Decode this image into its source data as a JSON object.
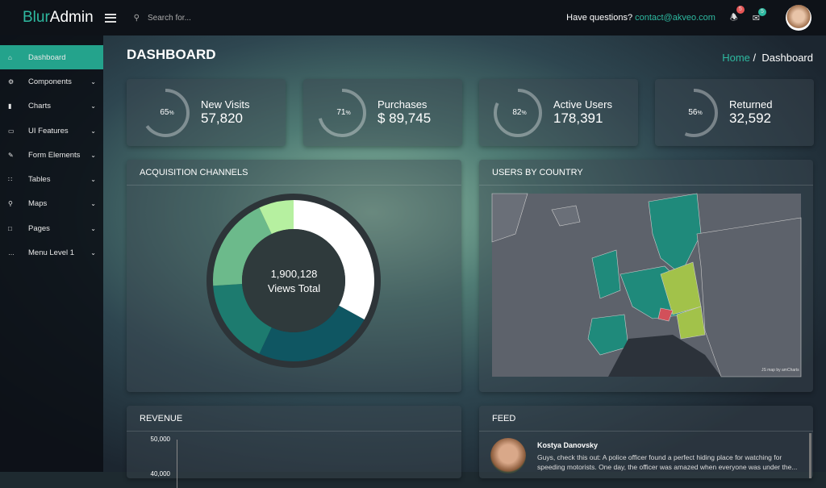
{
  "header": {
    "logo_part1": "Blur",
    "logo_part2": "Admin",
    "search_placeholder": "Search for...",
    "questions": "Have questions?",
    "email": "contact@akveo.com",
    "notifications_count": "5",
    "messages_count": "5"
  },
  "sidebar": {
    "items": [
      {
        "label": "Dashboard",
        "icon": "home"
      },
      {
        "label": "Components",
        "icon": "gear"
      },
      {
        "label": "Charts",
        "icon": "bar-chart"
      },
      {
        "label": "UI Features",
        "icon": "monitor"
      },
      {
        "label": "Form Elements",
        "icon": "edit"
      },
      {
        "label": "Tables",
        "icon": "grid"
      },
      {
        "label": "Maps",
        "icon": "map-pin"
      },
      {
        "label": "Pages",
        "icon": "file"
      },
      {
        "label": "Menu Level 1",
        "icon": "ellipsis"
      }
    ]
  },
  "page": {
    "title": "DASHBOARD",
    "breadcrumb_home": "Home",
    "breadcrumb_sep": "/",
    "breadcrumb_current": "Dashboard"
  },
  "stats": [
    {
      "percent": "65",
      "label": "New Visits",
      "value": "57,820"
    },
    {
      "percent": "71",
      "label": "Purchases",
      "value": "$ 89,745"
    },
    {
      "percent": "82",
      "label": "Active Users",
      "value": "178,391"
    },
    {
      "percent": "56",
      "label": "Returned",
      "value": "32,592"
    }
  ],
  "acquisition": {
    "title": "ACQUISITION CHANNELS",
    "center_value": "1,900,128",
    "center_label": "Views Total"
  },
  "chart_data": {
    "type": "pie",
    "values": [
      33,
      24,
      17,
      19,
      7
    ],
    "colors": [
      "#ffffff",
      "#0f5662",
      "#1d7b6f",
      "#6cba8b",
      "#b6f0a0"
    ]
  },
  "map": {
    "title": "USERS BY COUNTRY",
    "credit": "JS map by amCharts"
  },
  "revenue": {
    "title": "REVENUE",
    "ticks": [
      "50,000",
      "40,000"
    ]
  },
  "feed": {
    "title": "FEED",
    "items": [
      {
        "author": "Kostya Danovsky",
        "text": "Guys, check this out: A police officer found a perfect hiding place for watching for speeding motorists. One day, the officer was amazed when everyone was under the..."
      }
    ]
  },
  "colors": {
    "accent": "#2eb9a0",
    "notification": "#e85656"
  }
}
